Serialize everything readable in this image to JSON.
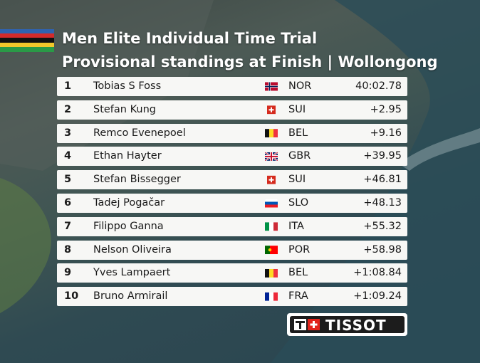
{
  "header": {
    "title": "Men Elite Individual Time Trial",
    "subtitle": "Provisional standings at Finish | Wollongong"
  },
  "table": {
    "rows": [
      [
        "1",
        "Tobias S Foss",
        "NOR",
        "40:02.78"
      ],
      [
        "2",
        "Stefan Kung",
        "SUI",
        "+2.95"
      ],
      [
        "3",
        "Remco Evenepoel",
        "BEL",
        "+9.16"
      ],
      [
        "4",
        "Ethan Hayter",
        "GBR",
        "+39.95"
      ],
      [
        "5",
        "Stefan Bissegger",
        "SUI",
        "+46.81"
      ],
      [
        "6",
        "Tadej Pogačar",
        "SLO",
        "+48.13"
      ],
      [
        "7",
        "Filippo Ganna",
        "ITA",
        "+55.32"
      ],
      [
        "8",
        "Nelson Oliveira",
        "POR",
        "+58.98"
      ],
      [
        "9",
        "Yves Lampaert",
        "BEL",
        "+1:08.84"
      ],
      [
        "10",
        "Bruno Armirail",
        "FRA",
        "+1:09.24"
      ]
    ]
  },
  "sponsor": "TISSOT"
}
